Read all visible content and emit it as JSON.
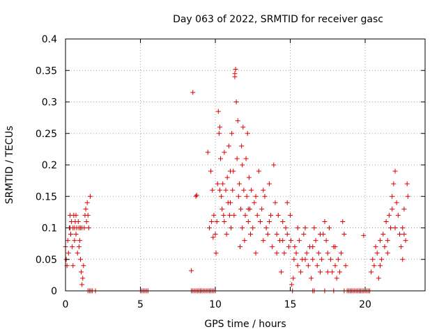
{
  "chart_data": {
    "type": "scatter",
    "title": "Day 063 of 2022, SRMTID for receiver gasc",
    "xlabel": "GPS time / hours",
    "ylabel": "SRMTID / TECUs",
    "xlim": [
      0,
      24
    ],
    "ylim": [
      0,
      0.4
    ],
    "xticks": [
      0,
      5,
      10,
      15,
      20
    ],
    "xtick_labels": [
      "0",
      "5",
      "10",
      "15",
      "20"
    ],
    "yticks": [
      0,
      0.05,
      0.1,
      0.15,
      0.2,
      0.25,
      0.3,
      0.35,
      0.4
    ],
    "ytick_labels": [
      "0",
      "0.05",
      "0.1",
      "0.15",
      "0.2",
      "0.25",
      "0.3",
      "0.35",
      "0.4"
    ],
    "grid": true,
    "marker": "+",
    "color": "#e00000",
    "series": [
      {
        "name": "SRMTID",
        "points": [
          [
            0.0,
            0.07
          ],
          [
            0.05,
            0.05
          ],
          [
            0.1,
            0.04
          ],
          [
            0.15,
            0.08
          ],
          [
            0.2,
            0.06
          ],
          [
            0.25,
            0.1
          ],
          [
            0.3,
            0.12
          ],
          [
            0.35,
            0.09
          ],
          [
            0.4,
            0.11
          ],
          [
            0.45,
            0.07
          ],
          [
            0.5,
            0.1
          ],
          [
            0.55,
            0.12
          ],
          [
            0.6,
            0.08
          ],
          [
            0.65,
            0.11
          ],
          [
            0.7,
            0.09
          ],
          [
            0.75,
            0.1
          ],
          [
            0.8,
            0.06
          ],
          [
            0.85,
            0.11
          ],
          [
            0.9,
            0.1
          ],
          [
            0.95,
            0.08
          ],
          [
            1.0,
            0.05
          ],
          [
            1.05,
            0.03
          ],
          [
            1.1,
            0.01
          ],
          [
            1.15,
            0.02
          ],
          [
            1.2,
            0.04
          ],
          [
            1.25,
            0.1
          ],
          [
            1.3,
            0.12
          ],
          [
            1.35,
            0.13
          ],
          [
            1.4,
            0.11
          ],
          [
            1.45,
            0.14
          ],
          [
            1.5,
            0.12
          ],
          [
            1.55,
            0.1
          ],
          [
            1.65,
            0.15
          ],
          [
            0.3,
            0.1
          ],
          [
            0.6,
            0.1
          ],
          [
            0.9,
            0.07
          ],
          [
            1.0,
            0.1
          ],
          [
            1.1,
            0.1
          ],
          [
            0.5,
            0.04
          ],
          [
            0.7,
            0.12
          ],
          [
            1.5,
            0.0
          ],
          [
            1.6,
            0.0
          ],
          [
            1.7,
            0.0
          ],
          [
            1.8,
            0.0
          ],
          [
            2.0,
            0.0
          ],
          [
            5.0,
            0.0
          ],
          [
            5.1,
            0.0
          ],
          [
            5.2,
            0.0
          ],
          [
            5.3,
            0.0
          ],
          [
            5.4,
            0.0
          ],
          [
            5.5,
            0.0
          ],
          [
            8.4,
            0.0
          ],
          [
            8.5,
            0.0
          ],
          [
            8.6,
            0.0
          ],
          [
            8.7,
            0.0
          ],
          [
            8.8,
            0.0
          ],
          [
            8.9,
            0.0
          ],
          [
            9.0,
            0.0
          ],
          [
            9.1,
            0.0
          ],
          [
            9.2,
            0.0
          ],
          [
            9.3,
            0.0
          ],
          [
            9.4,
            0.0
          ],
          [
            9.5,
            0.0
          ],
          [
            9.6,
            0.0
          ],
          [
            9.7,
            0.0
          ],
          [
            9.8,
            0.0
          ],
          [
            9.9,
            0.0
          ],
          [
            10.0,
            0.0
          ],
          [
            8.5,
            0.315
          ],
          [
            8.4,
            0.032
          ],
          [
            8.7,
            0.15
          ],
          [
            8.75,
            0.152
          ],
          [
            9.5,
            0.22
          ],
          [
            9.6,
            0.1
          ],
          [
            9.7,
            0.19
          ],
          [
            9.75,
            0.11
          ],
          [
            9.8,
            0.16
          ],
          [
            9.85,
            0.085
          ],
          [
            9.9,
            0.12
          ],
          [
            10.0,
            0.09
          ],
          [
            10.05,
            0.06
          ],
          [
            10.1,
            0.11
          ],
          [
            10.15,
            0.17
          ],
          [
            10.2,
            0.285
          ],
          [
            10.25,
            0.25
          ],
          [
            10.3,
            0.26
          ],
          [
            10.35,
            0.21
          ],
          [
            10.4,
            0.15
          ],
          [
            10.45,
            0.13
          ],
          [
            10.5,
            0.17
          ],
          [
            10.55,
            0.12
          ],
          [
            10.6,
            0.11
          ],
          [
            10.7,
            0.16
          ],
          [
            10.75,
            0.09
          ],
          [
            10.8,
            0.18
          ],
          [
            10.85,
            0.14
          ],
          [
            10.9,
            0.23
          ],
          [
            10.95,
            0.12
          ],
          [
            11.0,
            0.19
          ],
          [
            11.05,
            0.1
          ],
          [
            11.1,
            0.25
          ],
          [
            11.15,
            0.16
          ],
          [
            11.2,
            0.19
          ],
          [
            11.25,
            0.12
          ],
          [
            11.3,
            0.345
          ],
          [
            11.35,
            0.352
          ],
          [
            11.4,
            0.3
          ],
          [
            11.45,
            0.21
          ],
          [
            11.5,
            0.27
          ],
          [
            11.55,
            0.15
          ],
          [
            11.6,
            0.17
          ],
          [
            11.65,
            0.07
          ],
          [
            11.7,
            0.13
          ],
          [
            11.75,
            0.23
          ],
          [
            11.8,
            0.1
          ],
          [
            11.85,
            0.26
          ],
          [
            11.9,
            0.16
          ],
          [
            11.95,
            0.08
          ],
          [
            12.0,
            0.12
          ],
          [
            12.05,
            0.21
          ],
          [
            12.1,
            0.15
          ],
          [
            12.15,
            0.25
          ],
          [
            12.2,
            0.11
          ],
          [
            12.25,
            0.18
          ],
          [
            12.3,
            0.13
          ],
          [
            12.35,
            0.09
          ],
          [
            12.4,
            0.16
          ],
          [
            12.5,
            0.1
          ],
          [
            12.6,
            0.14
          ],
          [
            12.7,
            0.06
          ],
          [
            12.8,
            0.12
          ],
          [
            12.9,
            0.19
          ],
          [
            13.0,
            0.11
          ],
          [
            13.1,
            0.13
          ],
          [
            13.2,
            0.08
          ],
          [
            13.3,
            0.15
          ],
          [
            13.4,
            0.1
          ],
          [
            13.5,
            0.09
          ],
          [
            13.6,
            0.17
          ],
          [
            13.7,
            0.12
          ],
          [
            13.8,
            0.07
          ],
          [
            13.9,
            0.2
          ],
          [
            14.0,
            0.14
          ],
          [
            14.1,
            0.09
          ],
          [
            14.2,
            0.12
          ],
          [
            14.3,
            0.08
          ],
          [
            14.4,
            0.03
          ],
          [
            14.5,
            0.11
          ],
          [
            14.6,
            0.06
          ],
          [
            14.7,
            0.1
          ],
          [
            14.8,
            0.14
          ],
          [
            14.9,
            0.07
          ],
          [
            15.0,
            0.12
          ],
          [
            15.05,
            0.08
          ],
          [
            10.3,
            0.16
          ],
          [
            10.6,
            0.22
          ],
          [
            11.0,
            0.14
          ],
          [
            11.3,
            0.34
          ],
          [
            11.8,
            0.2
          ],
          [
            12.2,
            0.13
          ],
          [
            12.7,
            0.15
          ],
          [
            13.2,
            0.16
          ],
          [
            13.6,
            0.11
          ],
          [
            14.1,
            0.06
          ],
          [
            14.5,
            0.08
          ],
          [
            14.8,
            0.09
          ],
          [
            15.1,
            0.01
          ],
          [
            15.15,
            0.0
          ],
          [
            15.2,
            0.02
          ],
          [
            15.25,
            0.05
          ],
          [
            15.3,
            0.07
          ],
          [
            15.4,
            0.06
          ],
          [
            15.5,
            0.04
          ],
          [
            15.6,
            0.08
          ],
          [
            15.7,
            0.03
          ],
          [
            15.8,
            0.05
          ],
          [
            15.9,
            0.09
          ],
          [
            16.0,
            0.1
          ],
          [
            16.1,
            0.06
          ],
          [
            16.2,
            0.04
          ],
          [
            16.3,
            0.07
          ],
          [
            16.4,
            0.02
          ],
          [
            16.5,
            0.05
          ],
          [
            16.6,
            0.1
          ],
          [
            16.7,
            0.08
          ],
          [
            16.8,
            0.04
          ],
          [
            16.9,
            0.06
          ],
          [
            17.0,
            0.03
          ],
          [
            17.1,
            0.05
          ],
          [
            17.2,
            0.09
          ],
          [
            17.3,
            0.11
          ],
          [
            17.4,
            0.08
          ],
          [
            17.5,
            0.06
          ],
          [
            17.6,
            0.1
          ],
          [
            17.7,
            0.05
          ],
          [
            17.8,
            0.03
          ],
          [
            17.9,
            0.07
          ],
          [
            18.0,
            0.04
          ],
          [
            18.1,
            0.02
          ],
          [
            18.2,
            0.05
          ],
          [
            18.3,
            0.03
          ],
          [
            18.4,
            0.06
          ],
          [
            18.5,
            0.11
          ],
          [
            18.6,
            0.09
          ],
          [
            18.7,
            0.04
          ],
          [
            15.5,
            0.1
          ],
          [
            16.0,
            0.05
          ],
          [
            16.5,
            0.07
          ],
          [
            17.0,
            0.09
          ],
          [
            17.5,
            0.03
          ],
          [
            18.0,
            0.07
          ],
          [
            16.5,
            0.0
          ],
          [
            16.6,
            0.0
          ],
          [
            17.3,
            0.0
          ],
          [
            17.9,
            0.0
          ],
          [
            18.6,
            0.0
          ],
          [
            18.8,
            0.0
          ],
          [
            18.9,
            0.0
          ],
          [
            19.0,
            0.0
          ],
          [
            19.1,
            0.0
          ],
          [
            19.2,
            0.0
          ],
          [
            19.3,
            0.0
          ],
          [
            19.4,
            0.0
          ],
          [
            19.5,
            0.0
          ],
          [
            19.6,
            0.0
          ],
          [
            19.7,
            0.0
          ],
          [
            19.8,
            0.0
          ],
          [
            19.9,
            0.0
          ],
          [
            20.0,
            0.0
          ],
          [
            20.1,
            0.0
          ],
          [
            20.2,
            0.0
          ],
          [
            20.3,
            0.0
          ],
          [
            19.9,
            0.088
          ],
          [
            20.4,
            0.03
          ],
          [
            20.5,
            0.05
          ],
          [
            20.6,
            0.04
          ],
          [
            20.7,
            0.07
          ],
          [
            20.8,
            0.06
          ],
          [
            20.9,
            0.02
          ],
          [
            21.0,
            0.08
          ],
          [
            21.1,
            0.05
          ],
          [
            21.2,
            0.09
          ],
          [
            21.3,
            0.07
          ],
          [
            21.4,
            0.11
          ],
          [
            21.5,
            0.08
          ],
          [
            21.6,
            0.12
          ],
          [
            21.7,
            0.1
          ],
          [
            21.8,
            0.15
          ],
          [
            21.9,
            0.17
          ],
          [
            22.0,
            0.19
          ],
          [
            22.1,
            0.14
          ],
          [
            22.2,
            0.12
          ],
          [
            22.3,
            0.09
          ],
          [
            22.4,
            0.07
          ],
          [
            22.5,
            0.1
          ],
          [
            22.6,
            0.13
          ],
          [
            22.7,
            0.08
          ],
          [
            22.8,
            0.17
          ],
          [
            22.85,
            0.15
          ],
          [
            21.0,
            0.04
          ],
          [
            21.5,
            0.06
          ],
          [
            22.0,
            0.1
          ],
          [
            22.5,
            0.05
          ],
          [
            22.6,
            0.09
          ],
          [
            21.8,
            0.13
          ]
        ]
      }
    ]
  }
}
